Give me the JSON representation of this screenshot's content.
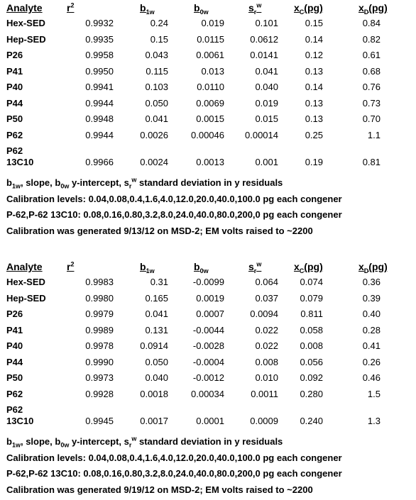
{
  "header": {
    "analyte": "Analyte",
    "r": "r",
    "r_sup": "2",
    "b": "b",
    "b1_sub": "1w",
    "b0_sub": "0w",
    "s": "s",
    "sr_sub": "r",
    "sr_sup": "w",
    "x": "x",
    "xc_sub": "C",
    "xd_sub": "D",
    "pg": "(pg)"
  },
  "table1": {
    "rows": [
      {
        "analyte": "Hex-SED",
        "r2": "0.9932",
        "b1w": "0.24",
        "b0w": "0.019",
        "sr": "0.101",
        "xc": "0.15",
        "xd": "0.84"
      },
      {
        "analyte": "Hep-SED",
        "r2": "0.9935",
        "b1w": "0.15",
        "b0w": "0.0115",
        "sr": "0.0612",
        "xc": "0.14",
        "xd": "0.82"
      },
      {
        "analyte": "P26",
        "r2": "0.9958",
        "b1w": "0.043",
        "b0w": "0.0061",
        "sr": "0.0141",
        "xc": "0.12",
        "xd": "0.61"
      },
      {
        "analyte": "P41",
        "r2": "0.9950",
        "b1w": "0.115",
        "b0w": "0.013",
        "sr": "0.041",
        "xc": "0.13",
        "xd": "0.68"
      },
      {
        "analyte": "P40",
        "r2": "0.9941",
        "b1w": "0.103",
        "b0w": "0.0110",
        "sr": "0.040",
        "xc": "0.14",
        "xd": "0.76"
      },
      {
        "analyte": "P44",
        "r2": "0.9944",
        "b1w": "0.050",
        "b0w": "0.0069",
        "sr": "0.019",
        "xc": "0.13",
        "xd": "0.73"
      },
      {
        "analyte": "P50",
        "r2": "0.9948",
        "b1w": "0.041",
        "b0w": "0.0015",
        "sr": "0.015",
        "xc": "0.13",
        "xd": "0.70"
      },
      {
        "analyte": "P62",
        "r2": "0.9944",
        "b1w": "0.0026",
        "b0w": "0.00046",
        "sr": "0.00014",
        "xc": "0.25",
        "xd": "1.1"
      },
      {
        "analyte": "P62 13C10",
        "r2": "0.9966",
        "b1w": "0.0024",
        "b0w": "0.0013",
        "sr": "0.001",
        "xc": "0.19",
        "xd": "0.81"
      }
    ],
    "notes": {
      "legend_b1": "b",
      "legend_b1_sub": "1w",
      "legend_slope": ", slope, b",
      "legend_b0_sub": "0w",
      "legend_intercept": " y-intercept, s",
      "legend_sr_sub": "r",
      "legend_sr_sup": "w",
      "legend_tail": " standard deviation in y residuals",
      "calib": "Calibration levels:  0.04,0.08,0.4,1.6,4.0,12.0,20.0,40.0,100.0 pg each congener",
      "p62": "P-62,P-62 13C10: 0.08,0.16,0.80,3.2,8.0,24.0,40.0,80.0,200,0 pg each congener",
      "generated": "Calibration was generated 9/13/12 on MSD-2; EM volts raised to ~2200"
    }
  },
  "table2": {
    "rows": [
      {
        "analyte": "Hex-SED",
        "r2": "0.9983",
        "b1w": "0.31",
        "b0w": "-0.0099",
        "sr": "0.064",
        "xc": "0.074",
        "xd": "0.36"
      },
      {
        "analyte": "Hep-SED",
        "r2": "0.9980",
        "b1w": "0.165",
        "b0w": "0.0019",
        "sr": "0.037",
        "xc": "0.079",
        "xd": "0.39"
      },
      {
        "analyte": "P26",
        "r2": "0.9979",
        "b1w": "0.041",
        "b0w": "0.0007",
        "sr": "0.0094",
        "xc": "0.811",
        "xd": "0.40"
      },
      {
        "analyte": "P41",
        "r2": "0.9989",
        "b1w": "0.131",
        "b0w": "-0.0044",
        "sr": "0.022",
        "xc": "0.058",
        "xd": "0.28"
      },
      {
        "analyte": "P40",
        "r2": "0.9978",
        "b1w": "0.0914",
        "b0w": "-0.0028",
        "sr": "0.022",
        "xc": "0.008",
        "xd": "0.41"
      },
      {
        "analyte": "P44",
        "r2": "0.9990",
        "b1w": "0.050",
        "b0w": "-0.0004",
        "sr": "0.008",
        "xc": "0.056",
        "xd": "0.26"
      },
      {
        "analyte": "P50",
        "r2": "0.9973",
        "b1w": "0.040",
        "b0w": "-0.0012",
        "sr": "0.010",
        "xc": "0.092",
        "xd": "0.46"
      },
      {
        "analyte": "P62",
        "r2": "0.9928",
        "b1w": "0.0018",
        "b0w": "0.00034",
        "sr": "0.0011",
        "xc": "0.280",
        "xd": "1.5"
      },
      {
        "analyte": "P62 13C10",
        "r2": "0.9945",
        "b1w": "0.0017",
        "b0w": "0.0001",
        "sr": "0.0009",
        "xc": "0.240",
        "xd": "1.3"
      }
    ],
    "notes": {
      "legend_b1": "b",
      "legend_b1_sub": "1w",
      "legend_slope": ", slope, b",
      "legend_b0_sub": "0w",
      "legend_intercept": " y-intercept, s",
      "legend_sr_sub": "r",
      "legend_sr_sup": "w",
      "legend_tail": " standard deviation in y residuals",
      "calib": "Calibration levels:  0.04,0.08,0.4,1.6,4.0,12.0,20.0,40.0,100.0 pg each congener",
      "p62": "P-62,P-62 13C10: 0.08,0.16,0.80,3.2,8.0,24.0,40.0,80.0,200,0 pg each congener",
      "generated": "Calibration was generated 9/19/12 on MSD-2; EM volts raised to ~2200"
    }
  }
}
